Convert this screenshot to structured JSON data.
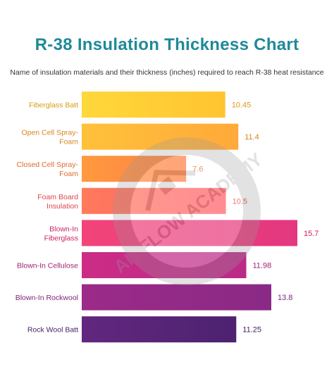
{
  "chart_data": {
    "type": "bar",
    "orientation": "horizontal",
    "title": "R-38 Insulation Thickness Chart",
    "subtitle": "Name of insulation materials and their thickness (inches) required to reach R-38 heat resistance",
    "categories": [
      [
        "Fiberglass Batt"
      ],
      [
        "Open Cell Spray-",
        "Foam"
      ],
      [
        "Closed Cell Spray-",
        "Foam"
      ],
      [
        "Foam Board",
        "Insulation"
      ],
      [
        "Blown-In",
        "Fiberglass"
      ],
      [
        "Blown-In Cellulose"
      ],
      [
        "Blown-In Rockwool"
      ],
      [
        "Rock Wool Batt"
      ]
    ],
    "values": [
      10.45,
      11.4,
      7.6,
      10.5,
      15.7,
      11.98,
      13.8,
      11.25
    ],
    "value_labels": [
      "10.45",
      "11.4",
      "7.6",
      "10.5",
      "15.7",
      "11.98",
      "13.8",
      "11.25"
    ],
    "bar_colors": [
      [
        "#ffd83a",
        "#ffc431"
      ],
      [
        "#ffc13a",
        "#ffa93a"
      ],
      [
        "#ff9a3e",
        "#ff8045"
      ],
      [
        "#ff7a5c",
        "#ff5f6a"
      ],
      [
        "#f2447a",
        "#e3377f"
      ],
      [
        "#cc2c86",
        "#ba2b88"
      ],
      [
        "#9c2a88",
        "#8a2a86"
      ],
      [
        "#62277f",
        "#4d2270"
      ]
    ],
    "label_colors": [
      "#d99b12",
      "#d9851d",
      "#dd6a2c",
      "#e1434b",
      "#cf1f63",
      "#a0236f",
      "#7c2478",
      "#431c62"
    ],
    "value_colors": [
      "#d99b12",
      "#d9851d",
      "#dd6a2c",
      "#e1434b",
      "#cf1f63",
      "#a0236f",
      "#7c2478",
      "#431c62"
    ]
  },
  "watermark": {
    "text": "AIRFLOW ACADEMY"
  }
}
